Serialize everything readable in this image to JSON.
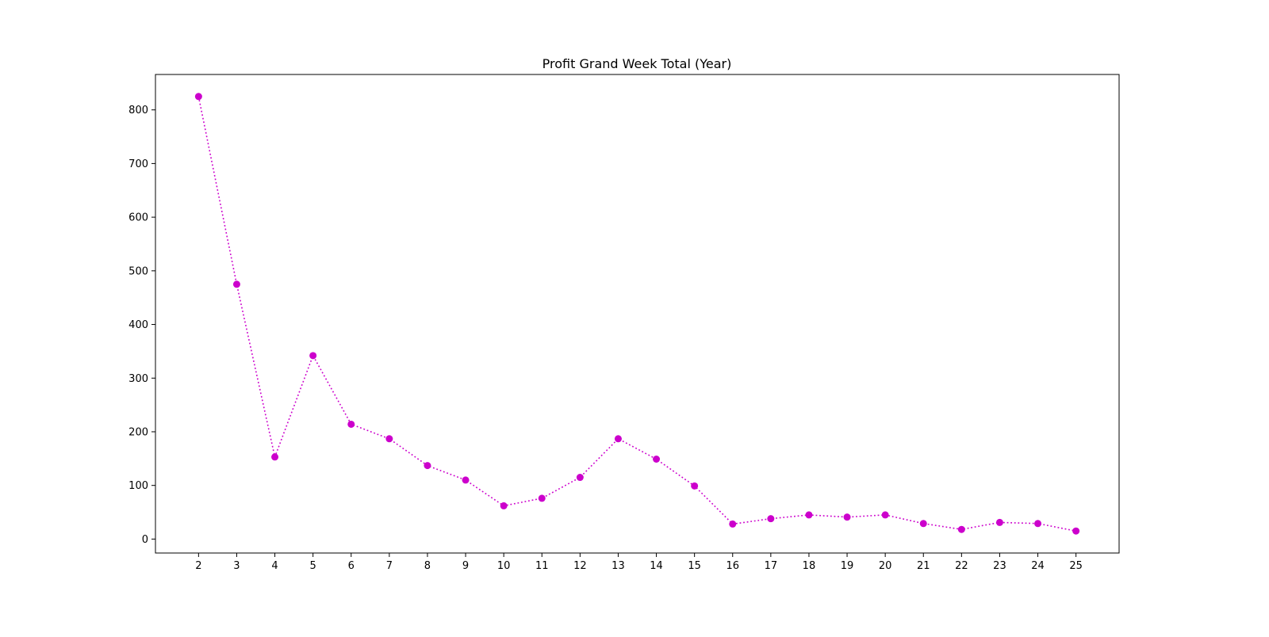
{
  "chart_data": {
    "type": "line",
    "title": "Profit Grand Week Total (Year)",
    "xlabel": "",
    "ylabel": "",
    "x": [
      2,
      3,
      4,
      5,
      6,
      7,
      8,
      9,
      10,
      11,
      12,
      13,
      14,
      15,
      16,
      17,
      18,
      19,
      20,
      21,
      22,
      23,
      24,
      25
    ],
    "series": [
      {
        "values": [
          825,
          475,
          153,
          342,
          214,
          187,
          137,
          110,
          62,
          76,
          115,
          187,
          149,
          99,
          28,
          38,
          45,
          41,
          45,
          29,
          18,
          31,
          29,
          15
        ],
        "color": "#cc00cc",
        "line_style": "dotted",
        "marker": "circle"
      }
    ],
    "x_ticks": [
      "2",
      "3",
      "4",
      "5",
      "6",
      "7",
      "8",
      "9",
      "10",
      "11",
      "12",
      "13",
      "14",
      "15",
      "16",
      "17",
      "18",
      "19",
      "20",
      "21",
      "22",
      "23",
      "24",
      "25"
    ],
    "y_ticks": [
      0,
      100,
      200,
      300,
      400,
      500,
      600,
      700,
      800
    ],
    "xlim": [
      0.87,
      26.13
    ],
    "ylim": [
      -26,
      866
    ],
    "grid": false,
    "legend": "none"
  }
}
